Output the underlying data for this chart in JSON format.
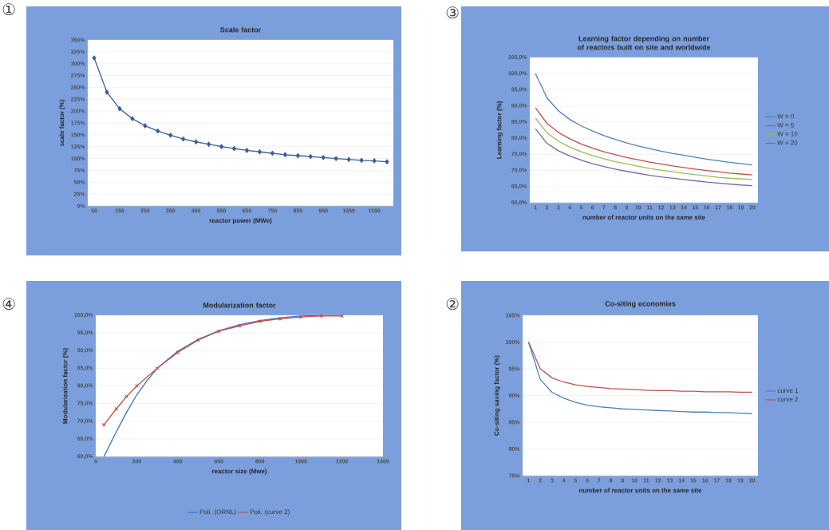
{
  "chart_data": [
    {
      "type": "line",
      "title": "Scale factor",
      "xlabel": "reactor power (MWe)",
      "ylabel": "scale factor (%)",
      "annotations": [
        "①"
      ],
      "categories": [
        "50",
        null,
        "150",
        null,
        "250",
        null,
        "350",
        null,
        "450",
        null,
        "550",
        null,
        "650",
        null,
        "750",
        null,
        "850",
        null,
        "950",
        null,
        "1050",
        null,
        "1150",
        null
      ],
      "series": [
        {
          "color": "#3c5d99",
          "values": [
            312,
            240,
            205,
            184,
            169,
            158,
            149,
            141,
            135,
            130,
            125,
            121,
            117,
            114,
            111,
            108,
            106,
            104,
            102,
            100,
            98,
            96,
            95,
            93
          ]
        }
      ],
      "ylim": [
        0,
        350
      ],
      "yticks": [
        {
          "value": 0,
          "label": "0%"
        },
        {
          "value": 25,
          "label": "25%"
        },
        {
          "value": 50,
          "label": "50%"
        },
        {
          "value": 75,
          "label": "75%"
        },
        {
          "value": 100,
          "label": "100%"
        },
        {
          "value": 125,
          "label": "125%"
        },
        {
          "value": 150,
          "label": "150%"
        },
        {
          "value": 175,
          "label": "175%"
        },
        {
          "value": 200,
          "label": "200%"
        },
        {
          "value": 225,
          "label": "225%"
        },
        {
          "value": 250,
          "label": "250%"
        },
        {
          "value": 275,
          "label": "275%"
        },
        {
          "value": 300,
          "label": "300%"
        },
        {
          "value": 325,
          "label": "325%"
        },
        {
          "value": 350,
          "label": "350%"
        }
      ],
      "grid": "y",
      "marker": "diamond"
    },
    {
      "type": "line",
      "title": "Learning factor depending on number of reactors built on site and worldwide",
      "xlabel": "number of reactor units on the same site",
      "ylabel": "Learning factor (%)",
      "annotations": [
        "③"
      ],
      "categories": [
        "1",
        "2",
        "3",
        "4",
        "5",
        "6",
        "7",
        "8",
        "9",
        "10",
        "11",
        "12",
        "13",
        "14",
        "15",
        "16",
        "17",
        "18",
        "19",
        "20"
      ],
      "series": [
        {
          "name": "W = 0",
          "color": "#4f81bd",
          "values": [
            100,
            92.5,
            88.5,
            85.8,
            83.8,
            82.2,
            80.8,
            79.6,
            78.5,
            77.6,
            76.8,
            76.0,
            75.3,
            74.7,
            74.1,
            73.5,
            73.0,
            72.5,
            72.1,
            71.7
          ]
        },
        {
          "name": "W = 5",
          "color": "#c0504d",
          "values": [
            89.4,
            84.6,
            81.8,
            79.8,
            78.2,
            76.9,
            75.8,
            74.9,
            74.0,
            73.3,
            72.6,
            72.0,
            71.4,
            70.9,
            70.4,
            70.0,
            69.6,
            69.2,
            68.9,
            68.6
          ]
        },
        {
          "name": "W = 10",
          "color": "#9bbb59",
          "values": [
            86.2,
            81.7,
            79.1,
            77.2,
            75.8,
            74.6,
            73.6,
            72.7,
            72.0,
            71.3,
            70.6,
            70.1,
            69.6,
            69.1,
            68.7,
            68.3,
            67.9,
            67.6,
            67.4,
            67.2
          ]
        },
        {
          "name": "W = 20",
          "color": "#8064a2",
          "values": [
            82.9,
            78.4,
            76.1,
            74.5,
            73.2,
            72.1,
            71.2,
            70.4,
            69.7,
            69.1,
            68.5,
            68.0,
            67.6,
            67.2,
            66.8,
            66.4,
            66.1,
            65.8,
            65.5,
            65.3
          ]
        }
      ],
      "ylim": [
        60,
        105
      ],
      "yticks": [
        {
          "value": 60,
          "label": "60,0%"
        },
        {
          "value": 65,
          "label": "65,0%"
        },
        {
          "value": 70,
          "label": "70,0%"
        },
        {
          "value": 75,
          "label": "75,0%"
        },
        {
          "value": 80,
          "label": "80,0%"
        },
        {
          "value": 85,
          "label": "85,0%"
        },
        {
          "value": 90,
          "label": "90,0%"
        },
        {
          "value": 95,
          "label": "95,0%"
        },
        {
          "value": 100,
          "label": "100,0%"
        },
        {
          "value": 105,
          "label": "105,0%"
        }
      ],
      "grid": "y",
      "legend": "right"
    },
    {
      "type": "line",
      "title": "Modularization factor",
      "xlabel": "reactor size (Mwe)",
      "ylabel": "Modularization factor (%)",
      "annotations": [
        "④"
      ],
      "series": [
        {
          "name": "Poli. (ORNL)",
          "color": "#3a6fc4",
          "x": [
            40,
            100,
            150,
            200,
            250,
            300,
            400,
            500,
            600,
            700,
            800,
            900,
            1000,
            1100,
            1200
          ],
          "values": [
            60,
            67,
            72.5,
            77.5,
            81.5,
            85,
            89.8,
            93.2,
            95.6,
            97.3,
            98.5,
            99.3,
            99.8,
            100,
            100
          ]
        },
        {
          "name": "Poli. (curve 2)",
          "color": "#c0504d",
          "marker": "cross",
          "x": [
            40,
            100,
            150,
            200,
            300,
            400,
            500,
            600,
            700,
            800,
            900,
            1000,
            1100,
            1200
          ],
          "values": [
            69,
            73.5,
            77,
            80,
            85,
            89.5,
            93,
            95.5,
            97,
            98.3,
            99,
            99.5,
            99.8,
            99.8
          ]
        }
      ],
      "xlim": [
        0,
        1400
      ],
      "xticks": [
        0,
        200,
        400,
        600,
        800,
        1000,
        1200,
        1400
      ],
      "ylim": [
        60,
        100
      ],
      "yticks": [
        {
          "value": 60,
          "label": "60,0%"
        },
        {
          "value": 65,
          "label": "65,0%"
        },
        {
          "value": 70,
          "label": "70,0%"
        },
        {
          "value": 75,
          "label": "75,0%"
        },
        {
          "value": 80,
          "label": "80,0%"
        },
        {
          "value": 85,
          "label": "85,0%"
        },
        {
          "value": 90,
          "label": "90,0%"
        },
        {
          "value": 95,
          "label": "95,0%"
        },
        {
          "value": 100,
          "label": "100,0%"
        }
      ],
      "grid": "y",
      "legend": "bottom"
    },
    {
      "type": "line",
      "title": "Co-siting economies",
      "xlabel": "number of reactor units on the same site",
      "ylabel": "Co-siting saving factor (%)",
      "annotations": [
        "②"
      ],
      "categories": [
        "1",
        "2",
        "3",
        "4",
        "5",
        "6",
        "7",
        "8",
        "9",
        "10",
        "11",
        "12",
        "13",
        "14",
        "15",
        "16",
        "17",
        "18",
        "19",
        "20"
      ],
      "series": [
        {
          "name": "curve 1",
          "color": "#4f81bd",
          "values": [
            100,
            93.0,
            90.6,
            89.5,
            88.7,
            88.2,
            87.9,
            87.7,
            87.5,
            87.4,
            87.3,
            87.2,
            87.1,
            87.0,
            86.9,
            86.9,
            86.8,
            86.8,
            86.7,
            86.6
          ]
        },
        {
          "name": "curve 2",
          "color": "#c0504d",
          "values": [
            100,
            95.0,
            93.3,
            92.5,
            92.0,
            91.7,
            91.5,
            91.3,
            91.2,
            91.1,
            91.0,
            90.9,
            90.9,
            90.8,
            90.8,
            90.7,
            90.7,
            90.7,
            90.6,
            90.6
          ]
        }
      ],
      "ylim": [
        75,
        105
      ],
      "yticks": [
        {
          "value": 75,
          "label": "75%"
        },
        {
          "value": 80,
          "label": "80%"
        },
        {
          "value": 85,
          "label": "85%"
        },
        {
          "value": 90,
          "label": "90%"
        },
        {
          "value": 95,
          "label": "95%"
        },
        {
          "value": 100,
          "label": "100%"
        },
        {
          "value": 105,
          "label": "105%"
        }
      ],
      "grid": "y",
      "legend": "right"
    }
  ]
}
